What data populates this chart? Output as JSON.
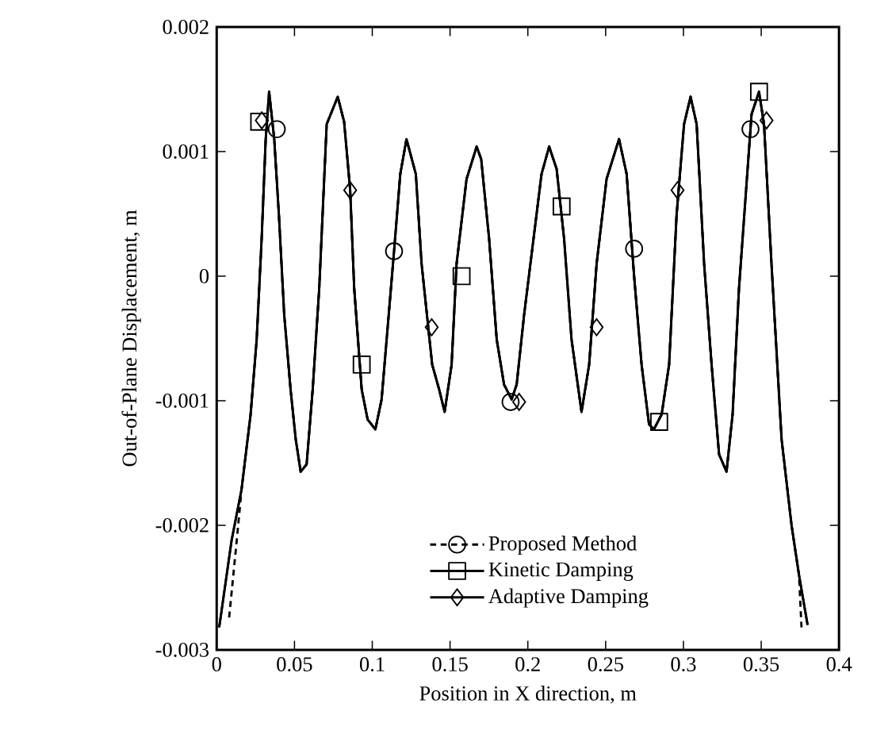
{
  "chart_data": {
    "type": "line",
    "xlabel": "Position in X direction, m",
    "ylabel": "Out-of-Plane Displacement, m",
    "xlim": [
      0,
      0.4
    ],
    "ylim": [
      -0.003,
      0.002
    ],
    "xticks": [
      0,
      0.05,
      0.1,
      0.15,
      0.2,
      0.25,
      0.3,
      0.35,
      0.4
    ],
    "yticks": [
      -0.003,
      -0.002,
      -0.001,
      0,
      0.001,
      0.002
    ],
    "legend": "bottom",
    "series": [
      {
        "name": "Proposed Method",
        "color": "#000000",
        "line_style": "dashed",
        "x": [
          0.008,
          0.0129,
          0.016,
          0.0218,
          0.0257,
          0.0289,
          0.0315,
          0.0337,
          0.037,
          0.04,
          0.0434,
          0.0475,
          0.0508,
          0.054,
          0.0578,
          0.0617,
          0.0659,
          0.0707,
          0.0778,
          0.0819,
          0.0858,
          0.0884,
          0.0932,
          0.097,
          0.102,
          0.106,
          0.114,
          0.118,
          0.122,
          0.128,
          0.1317,
          0.1385,
          0.143,
          0.1465,
          0.151,
          0.1542,
          0.1606,
          0.1671,
          0.17,
          0.1751,
          0.18,
          0.1847,
          0.1896,
          0.1928,
          0.1976,
          0.2088,
          0.2137,
          0.2185,
          0.2233,
          0.2281,
          0.2345,
          0.2394,
          0.2442,
          0.2506,
          0.2586,
          0.2635,
          0.2683,
          0.2731,
          0.2779,
          0.281,
          0.286,
          0.2908,
          0.2956,
          0.3004,
          0.3046,
          0.3085,
          0.3133,
          0.3181,
          0.3229,
          0.3277,
          0.3316,
          0.3357,
          0.3438,
          0.3486,
          0.3518,
          0.3566,
          0.3631,
          0.3695,
          0.3743,
          0.3759
        ],
        "values": [
          -0.00274,
          -0.00212,
          -0.00171,
          -0.00111,
          -0.00051,
          0.0003,
          0.0011,
          0.00148,
          0.0011,
          0.00049,
          -0.00031,
          -0.00091,
          -0.00131,
          -0.00157,
          -0.00151,
          -0.00091,
          -0.0001,
          0.00122,
          0.00144,
          0.00124,
          0.00069,
          -0.0001,
          -0.00091,
          -0.00115,
          -0.00123,
          -0.00099,
          0.0002,
          0.00082,
          0.0011,
          0.00082,
          0.0001,
          -0.00071,
          -0.00091,
          -0.00109,
          -0.00071,
          0.0001,
          0.00078,
          0.00104,
          0.00094,
          0.0003,
          -0.00051,
          -0.00087,
          -0.00099,
          -0.00087,
          -0.00031,
          0.00082,
          0.00104,
          0.00086,
          0.0003,
          -0.00051,
          -0.00109,
          -0.00071,
          0.0001,
          0.00078,
          0.0011,
          0.00082,
          0.0,
          -0.00071,
          -0.00119,
          -0.00123,
          -0.00111,
          -0.00071,
          0.00049,
          0.00122,
          0.00144,
          0.00122,
          0.0001,
          -0.00071,
          -0.00143,
          -0.00157,
          -0.00111,
          -0.0001,
          0.0013,
          0.00148,
          0.00122,
          0.0001,
          -0.00131,
          -0.002,
          -0.0024,
          -0.00282
        ]
      },
      {
        "name": "Kinetic Damping",
        "color": "#000000",
        "line_style": "solid",
        "x": [
          0.0016,
          0.0096,
          0.016,
          0.0218,
          0.0257,
          0.0289,
          0.0315,
          0.0337,
          0.037,
          0.04,
          0.0434,
          0.0475,
          0.0508,
          0.054,
          0.0578,
          0.0617,
          0.0659,
          0.0707,
          0.0778,
          0.0819,
          0.0858,
          0.0884,
          0.0932,
          0.097,
          0.102,
          0.106,
          0.114,
          0.118,
          0.122,
          0.128,
          0.1317,
          0.1385,
          0.143,
          0.1465,
          0.151,
          0.1542,
          0.1606,
          0.1671,
          0.17,
          0.1751,
          0.18,
          0.1847,
          0.1896,
          0.1928,
          0.1976,
          0.2088,
          0.2137,
          0.2185,
          0.2233,
          0.2281,
          0.2345,
          0.2394,
          0.2442,
          0.2506,
          0.2586,
          0.2635,
          0.2683,
          0.2731,
          0.2779,
          0.281,
          0.286,
          0.2908,
          0.2956,
          0.3004,
          0.3046,
          0.3085,
          0.3133,
          0.3181,
          0.3229,
          0.3277,
          0.3316,
          0.3357,
          0.3438,
          0.3486,
          0.3518,
          0.3566,
          0.3631,
          0.3695,
          0.3743,
          0.3798
        ],
        "values": [
          -0.00282,
          -0.00212,
          -0.00171,
          -0.00111,
          -0.00051,
          0.0003,
          0.0011,
          0.00148,
          0.0011,
          0.00049,
          -0.00031,
          -0.00091,
          -0.00131,
          -0.00157,
          -0.00151,
          -0.00091,
          -0.0001,
          0.00122,
          0.00144,
          0.00124,
          0.00069,
          -0.0001,
          -0.00091,
          -0.00115,
          -0.00123,
          -0.00099,
          0.0002,
          0.00082,
          0.0011,
          0.00082,
          0.0001,
          -0.00071,
          -0.00091,
          -0.00109,
          -0.00071,
          0.0001,
          0.00078,
          0.00104,
          0.00094,
          0.0003,
          -0.00051,
          -0.00087,
          -0.00099,
          -0.00087,
          -0.00031,
          0.00082,
          0.00104,
          0.00086,
          0.0003,
          -0.00051,
          -0.00109,
          -0.00071,
          0.0001,
          0.00078,
          0.0011,
          0.00082,
          0.0,
          -0.00071,
          -0.00119,
          -0.00123,
          -0.00111,
          -0.00071,
          0.00049,
          0.00122,
          0.00144,
          0.00122,
          0.0001,
          -0.00071,
          -0.00143,
          -0.00157,
          -0.00111,
          -0.0001,
          0.0013,
          0.00148,
          0.00122,
          0.0001,
          -0.00131,
          -0.002,
          -0.0024,
          -0.0028
        ]
      },
      {
        "name": "Adaptive Damping",
        "color": "#000000",
        "line_style": "solid",
        "x": [
          0.0016,
          0.0096,
          0.016,
          0.0218,
          0.0257,
          0.0289,
          0.0315,
          0.0337,
          0.037,
          0.04,
          0.0434,
          0.0475,
          0.0508,
          0.054,
          0.0578,
          0.0617,
          0.0659,
          0.0707,
          0.0778,
          0.0819,
          0.0858,
          0.0884,
          0.0932,
          0.097,
          0.102,
          0.106,
          0.114,
          0.118,
          0.122,
          0.128,
          0.1317,
          0.1385,
          0.143,
          0.1465,
          0.151,
          0.1542,
          0.1606,
          0.1671,
          0.17,
          0.1751,
          0.18,
          0.1847,
          0.1896,
          0.1928,
          0.1976,
          0.2088,
          0.2137,
          0.2185,
          0.2233,
          0.2281,
          0.2345,
          0.2394,
          0.2442,
          0.2506,
          0.2586,
          0.2635,
          0.2683,
          0.2731,
          0.2779,
          0.281,
          0.286,
          0.2908,
          0.2956,
          0.3004,
          0.3046,
          0.3085,
          0.3133,
          0.3181,
          0.3229,
          0.3277,
          0.3316,
          0.3357,
          0.3438,
          0.3486,
          0.3518,
          0.3566,
          0.3631,
          0.3695,
          0.3743,
          0.3798
        ],
        "values": [
          -0.00282,
          -0.00212,
          -0.00171,
          -0.00111,
          -0.00051,
          0.0003,
          0.0011,
          0.00148,
          0.0011,
          0.00049,
          -0.00031,
          -0.00091,
          -0.00131,
          -0.00157,
          -0.00151,
          -0.00091,
          -0.0001,
          0.00122,
          0.00144,
          0.00124,
          0.00069,
          -0.0001,
          -0.00091,
          -0.00115,
          -0.00123,
          -0.00099,
          0.0002,
          0.00082,
          0.0011,
          0.00082,
          0.0001,
          -0.00071,
          -0.00091,
          -0.00109,
          -0.00071,
          0.0001,
          0.00078,
          0.00104,
          0.00094,
          0.0003,
          -0.00051,
          -0.00087,
          -0.00099,
          -0.00087,
          -0.00031,
          0.00082,
          0.00104,
          0.00086,
          0.0003,
          -0.00051,
          -0.00109,
          -0.00071,
          0.0001,
          0.00078,
          0.0011,
          0.00082,
          0.0,
          -0.00071,
          -0.00119,
          -0.00123,
          -0.00111,
          -0.00071,
          0.00049,
          0.00122,
          0.00144,
          0.00122,
          0.0001,
          -0.00071,
          -0.00143,
          -0.00157,
          -0.00111,
          -0.0001,
          0.0013,
          0.00148,
          0.00122,
          0.0001,
          -0.00131,
          -0.002,
          -0.0024,
          -0.0028
        ]
      },
      {
        "type": "scatter",
        "color": "#000000",
        "marker": "circle",
        "x": [
          0.0386,
          0.114,
          0.1889,
          0.2683,
          0.3431
        ],
        "values": [
          0.00118,
          0.0002,
          -0.00101,
          0.00022,
          0.00118
        ]
      },
      {
        "type": "scatter",
        "color": "#000000",
        "marker": "square",
        "x": [
          0.0273,
          0.0932,
          0.1574,
          0.2217,
          0.2844,
          0.3486
        ],
        "values": [
          0.00124,
          -0.00071,
          0.0,
          0.00056,
          -0.00117,
          0.00148
        ]
      },
      {
        "type": "scatter",
        "color": "#000000",
        "marker": "diamond",
        "x": [
          0.029,
          0.0858,
          0.1382,
          0.1944,
          0.2442,
          0.2962,
          0.3534
        ],
        "values": [
          0.00125,
          0.00069,
          -0.00041,
          -0.00101,
          -0.00041,
          0.00069,
          0.00125
        ]
      }
    ]
  }
}
